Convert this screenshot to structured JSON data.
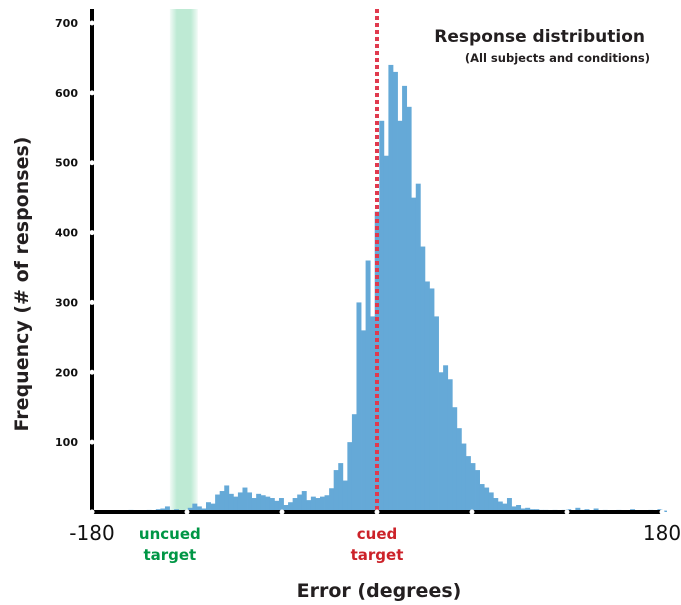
{
  "chart_data": {
    "type": "bar",
    "title": "Response distribution",
    "subtitle": "(All subjects and conditions)",
    "xlabel": "Error (degrees)",
    "ylabel": "Frequency (# of responses)",
    "xlim": [
      -180,
      180
    ],
    "ylim": [
      0,
      700
    ],
    "x_tick_labels": [
      "-180",
      "180"
    ],
    "y_ticks": [
      100,
      200,
      300,
      400,
      500,
      600,
      700
    ],
    "bin_width": 2.88,
    "values": [
      1,
      0,
      2,
      0,
      1,
      0,
      2,
      0,
      3,
      1,
      2,
      2,
      3,
      1,
      4,
      5,
      8,
      3,
      4,
      2,
      3,
      6,
      12,
      8,
      5,
      14,
      12,
      25,
      30,
      38,
      26,
      22,
      28,
      35,
      28,
      20,
      26,
      24,
      22,
      20,
      16,
      20,
      10,
      14,
      20,
      25,
      30,
      17,
      22,
      20,
      22,
      24,
      34,
      60,
      70,
      45,
      100,
      140,
      300,
      260,
      360,
      280,
      430,
      560,
      510,
      640,
      630,
      560,
      610,
      580,
      450,
      470,
      380,
      330,
      320,
      280,
      200,
      210,
      190,
      150,
      120,
      98,
      80,
      70,
      60,
      40,
      35,
      28,
      20,
      15,
      12,
      20,
      8,
      10,
      5,
      6,
      4,
      4,
      3,
      3,
      2,
      3,
      2,
      3,
      4,
      2,
      6,
      3,
      4,
      2,
      5,
      2,
      3,
      2,
      1,
      3,
      2,
      1,
      4,
      2,
      2,
      1,
      3,
      2,
      4,
      2
    ],
    "annotations": [
      {
        "label": [
          "uncued",
          "target"
        ],
        "x": -122,
        "color": "#009645"
      },
      {
        "label": [
          "cued",
          "target"
        ],
        "x": 0,
        "color": "#cc2229"
      }
    ],
    "colors": {
      "bars": "#65a9d7",
      "cued_line": "#e03a4e",
      "uncued_band": "#a8e3c6",
      "axis": "#000000"
    },
    "grid": false
  }
}
